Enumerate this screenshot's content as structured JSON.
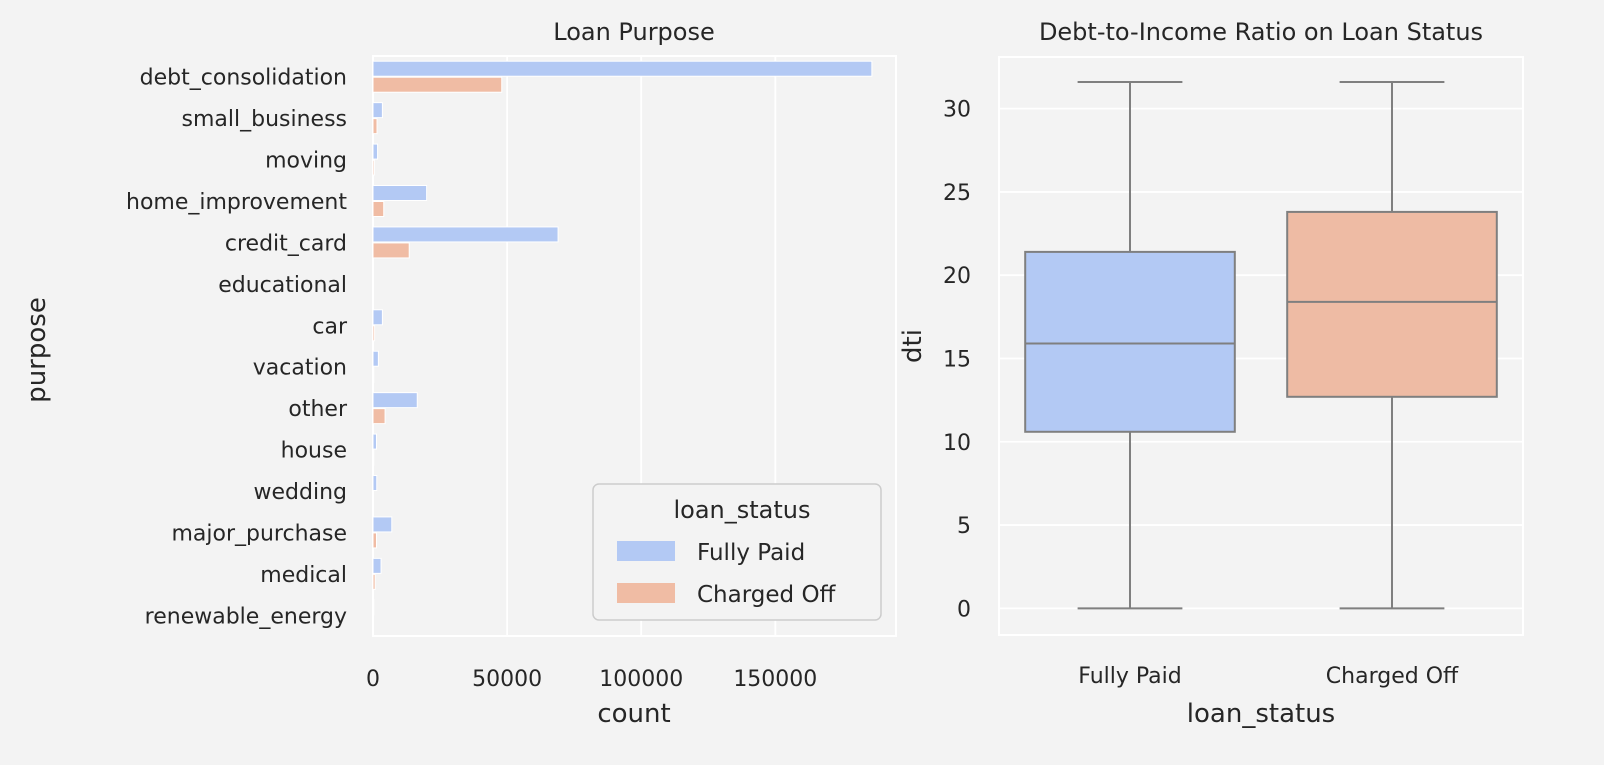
{
  "chart_data": [
    {
      "type": "bar",
      "orientation": "horizontal",
      "title": "Loan Purpose",
      "xlabel": "count",
      "ylabel": "purpose",
      "xlim": [
        0,
        195000
      ],
      "xticks": [
        0,
        50000,
        100000,
        150000
      ],
      "grid": true,
      "categories": [
        "debt_consolidation",
        "small_business",
        "moving",
        "home_improvement",
        "credit_card",
        "educational",
        "car",
        "vacation",
        "other",
        "house",
        "wedding",
        "major_purchase",
        "medical",
        "renewable_energy"
      ],
      "series": [
        {
          "name": "Fully Paid",
          "color": "#b3c9f4",
          "values": [
            186000,
            3500,
            1700,
            20000,
            69000,
            200,
            3500,
            2000,
            16500,
            1300,
            1400,
            7000,
            3000,
            300
          ]
        },
        {
          "name": "Charged Off",
          "color": "#f0bca4",
          "values": [
            48000,
            1500,
            500,
            4000,
            13500,
            50,
            600,
            300,
            4500,
            300,
            200,
            1300,
            800,
            100
          ]
        }
      ],
      "legend": {
        "title": "loan_status",
        "placement": "lower-right",
        "entries": [
          "Fully Paid",
          "Charged Off"
        ]
      }
    },
    {
      "type": "box",
      "title": "Debt-to-Income Ratio on Loan Status",
      "xlabel": "loan_status",
      "ylabel": "dti",
      "ylim": [
        -1.6,
        33.1
      ],
      "yticks": [
        0,
        5,
        10,
        15,
        20,
        25,
        30
      ],
      "grid": true,
      "categories": [
        "Fully Paid",
        "Charged Off"
      ],
      "boxes": [
        {
          "name": "Fully Paid",
          "color": "#b3c9f4",
          "whisker_low": 0,
          "q1": 10.6,
          "median": 15.9,
          "q3": 21.4,
          "whisker_high": 31.6
        },
        {
          "name": "Charged Off",
          "color": "#eebba4",
          "whisker_low": 0,
          "q1": 12.7,
          "median": 18.4,
          "q3": 23.8,
          "whisker_high": 31.6
        }
      ]
    }
  ]
}
